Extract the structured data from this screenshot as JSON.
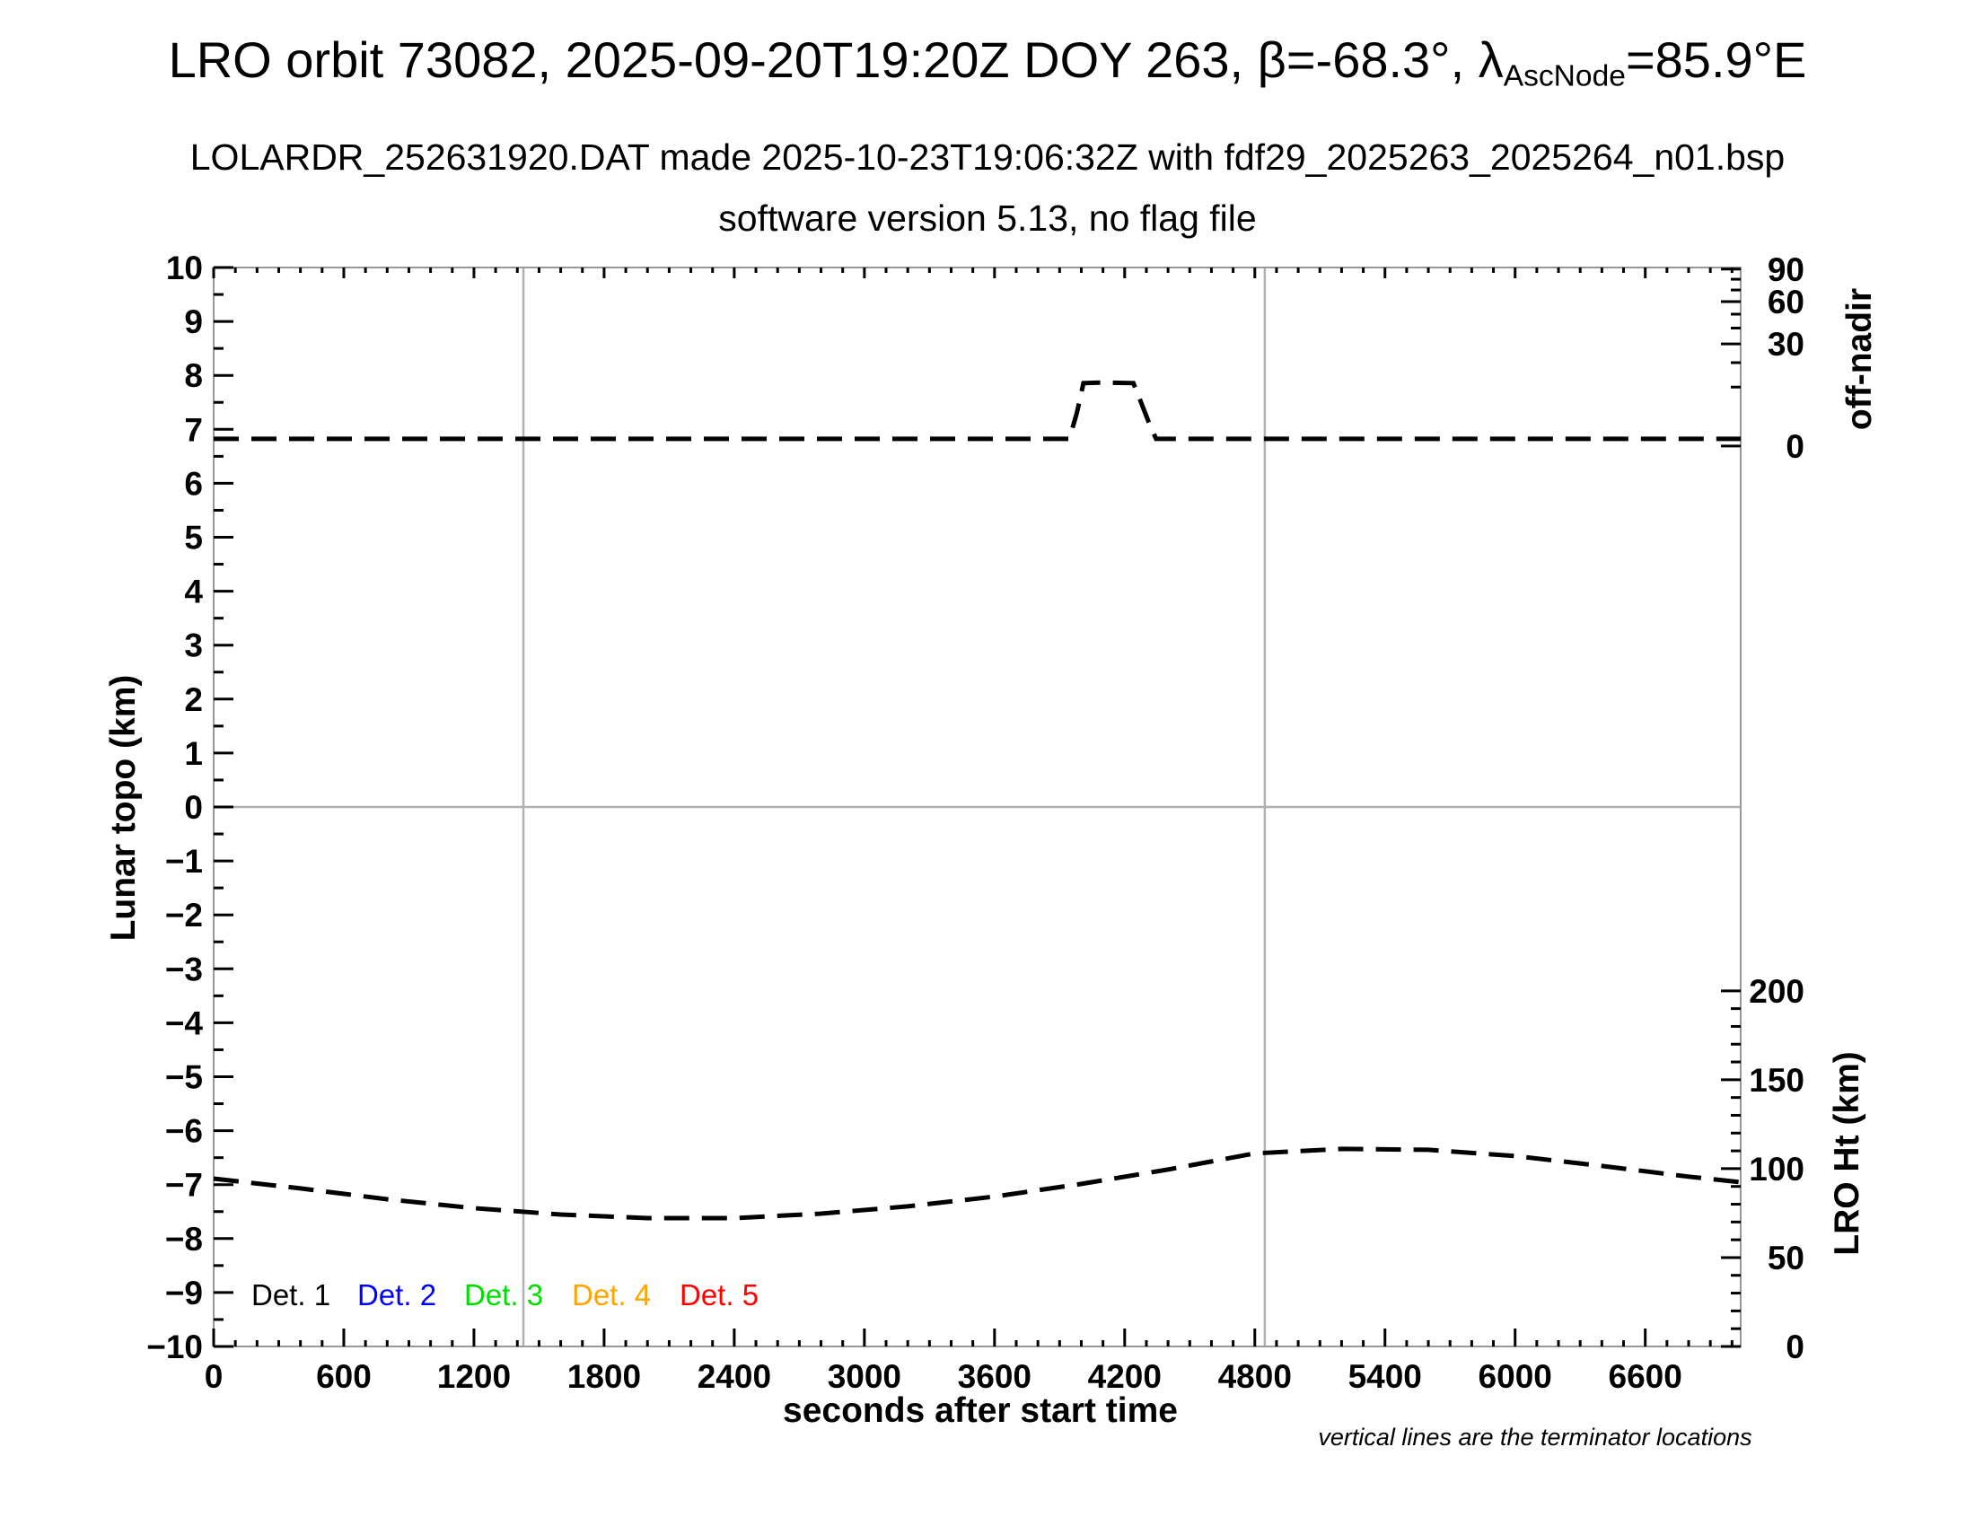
{
  "header": {
    "title_prefix": "LRO orbit 73082, 2025-09-20T19:20Z DOY 263, β=-68.3°, λ",
    "title_subscript": "AscNode",
    "title_suffix": "=85.9°E",
    "line2": "LOLARDR_252631920.DAT made 2025-10-23T19:06:32Z with fdf29_2025263_2025264_n01.bsp",
    "line3": "software version 5.13, no flag file"
  },
  "chart_data": {
    "type": "line",
    "title": "LRO orbit 73082, 2025-09-20T19:20Z DOY 263, β=-68.3°, λAscNode=85.9°E",
    "xlabel": "seconds after start time",
    "ylabel_left": "Lunar topo (km)",
    "ylabel_right_top": "off-nadir",
    "ylabel_right_bottom": "LRO Ht (km)",
    "footnote": "vertical lines are the terminator locations",
    "x_range_s": [
      0,
      7040
    ],
    "x_major_ticks": [
      0,
      600,
      1200,
      1800,
      2400,
      3000,
      3600,
      4200,
      4800,
      5400,
      6000,
      6600
    ],
    "x_minor_step_s": 100,
    "left_axis": {
      "label": "Lunar topo (km)",
      "range": [
        -10,
        10
      ],
      "major_step": 1,
      "minor_step": 0.5
    },
    "off_nadir_axis": {
      "label": "off-nadir",
      "scale": "sqrt",
      "range_deg": [
        0,
        90
      ],
      "major_ticks": [
        0,
        30,
        60,
        90
      ],
      "minor_ticks": [
        10,
        20,
        40,
        50,
        70,
        80
      ]
    },
    "lro_ht_axis": {
      "label": "LRO Ht (km)",
      "range_km": [
        0,
        200
      ],
      "major_ticks": [
        0,
        50,
        100,
        150,
        200
      ],
      "minor_step_km": 10
    },
    "grid": {
      "horizontal_zero_line": true,
      "terminator_lines_s": [
        1428,
        4846
      ]
    },
    "series": [
      {
        "name": "off-nadir angle",
        "axis": "off_nadir",
        "unit": "deg",
        "line": "dashed",
        "color": "#000000",
        "points": [
          [
            0,
            0.15
          ],
          [
            600,
            0.15
          ],
          [
            1200,
            0.15
          ],
          [
            1800,
            0.15
          ],
          [
            2400,
            0.15
          ],
          [
            3000,
            0.15
          ],
          [
            3500,
            0.15
          ],
          [
            3945,
            0.15
          ],
          [
            3980,
            3.2
          ],
          [
            4010,
            11.4
          ],
          [
            4100,
            11.6
          ],
          [
            4240,
            11.4
          ],
          [
            4270,
            6.3
          ],
          [
            4310,
            1.7
          ],
          [
            4345,
            0.15
          ],
          [
            5000,
            0.15
          ],
          [
            5600,
            0.15
          ],
          [
            6200,
            0.15
          ],
          [
            6700,
            0.15
          ],
          [
            7040,
            0.15
          ]
        ]
      },
      {
        "name": "LRO height",
        "axis": "lro_ht",
        "unit": "km",
        "line": "dashed",
        "color": "#000000",
        "points": [
          [
            0,
            94.4
          ],
          [
            400,
            88.9
          ],
          [
            800,
            82.8
          ],
          [
            1200,
            77.8
          ],
          [
            1600,
            74.2
          ],
          [
            2000,
            72.2
          ],
          [
            2400,
            72.2
          ],
          [
            2800,
            74.7
          ],
          [
            3200,
            78.8
          ],
          [
            3600,
            84.3
          ],
          [
            4000,
            91.4
          ],
          [
            4400,
            99.5
          ],
          [
            4800,
            108.6
          ],
          [
            5200,
            111.1
          ],
          [
            5600,
            110.6
          ],
          [
            6000,
            107.1
          ],
          [
            6400,
            101.5
          ],
          [
            6800,
            95.5
          ],
          [
            7040,
            92.4
          ]
        ]
      }
    ],
    "legend": {
      "items": [
        {
          "label": "Det. 1",
          "color": "#000000"
        },
        {
          "label": "Det. 2",
          "color": "#0000ff"
        },
        {
          "label": "Det. 3",
          "color": "#00dd00"
        },
        {
          "label": "Det. 4",
          "color": "#ffa500"
        },
        {
          "label": "Det. 5",
          "color": "#ff0000"
        }
      ]
    }
  },
  "colors": {
    "frame": "#999999",
    "grid_line": "#b0b0b0",
    "curve": "#000000"
  }
}
